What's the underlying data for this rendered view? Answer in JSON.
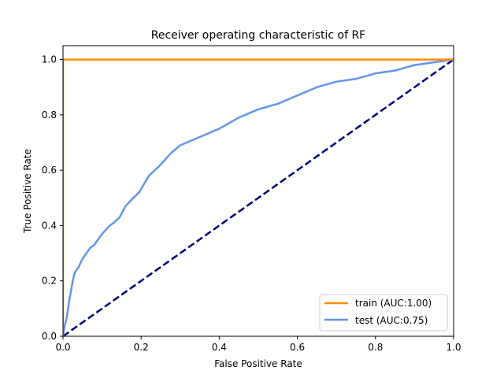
{
  "chart_data": {
    "type": "line",
    "title": "Receiver operating characteristic of RF",
    "xlabel": "False Positive Rate",
    "ylabel": "True Positive Rate",
    "xlim": [
      0,
      1
    ],
    "ylim": [
      0,
      1.05
    ],
    "x_ticks": [
      "0.0",
      "0.2",
      "0.4",
      "0.6",
      "0.8",
      "1.0"
    ],
    "y_ticks": [
      "0.0",
      "0.2",
      "0.4",
      "0.6",
      "0.8",
      "1.0"
    ],
    "grid": false,
    "legend_position": "lower-right",
    "series": [
      {
        "name": "train (AUC:1.00)",
        "color": "#ff8c00",
        "style": "solid",
        "x": [
          0.0,
          0.0,
          0.9,
          1.0
        ],
        "y": [
          0.0,
          1.0,
          1.0,
          1.0
        ]
      },
      {
        "name": "test (AUC:0.75)",
        "color": "#6495ed",
        "style": "solid",
        "x": [
          0.0,
          0.005,
          0.01,
          0.015,
          0.02,
          0.025,
          0.03,
          0.04,
          0.05,
          0.06,
          0.07,
          0.08,
          0.09,
          0.1,
          0.12,
          0.13,
          0.145,
          0.16,
          0.18,
          0.195,
          0.22,
          0.25,
          0.275,
          0.3,
          0.35,
          0.4,
          0.45,
          0.5,
          0.55,
          0.6,
          0.65,
          0.7,
          0.75,
          0.8,
          0.85,
          0.9,
          0.95,
          1.0
        ],
        "y": [
          0.0,
          0.04,
          0.07,
          0.12,
          0.16,
          0.2,
          0.23,
          0.25,
          0.28,
          0.3,
          0.32,
          0.33,
          0.35,
          0.37,
          0.4,
          0.41,
          0.43,
          0.47,
          0.5,
          0.52,
          0.58,
          0.62,
          0.66,
          0.69,
          0.72,
          0.75,
          0.79,
          0.82,
          0.84,
          0.87,
          0.9,
          0.92,
          0.93,
          0.95,
          0.96,
          0.98,
          0.99,
          1.0
        ]
      },
      {
        "name": "",
        "color": "#000080",
        "style": "dashed",
        "x": [
          0,
          1
        ],
        "y": [
          0,
          1
        ]
      }
    ]
  }
}
